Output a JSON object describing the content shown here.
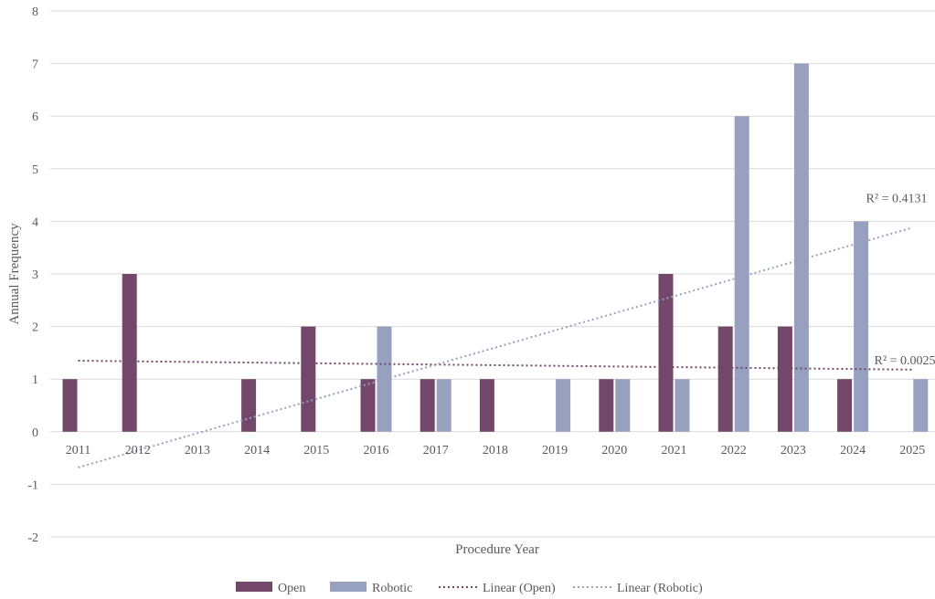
{
  "chart_data": {
    "type": "bar",
    "xlabel": "Procedure Year",
    "ylabel": "Annual Frequency",
    "ylim": [
      -2,
      8
    ],
    "yticks": [
      -2,
      -1,
      0,
      1,
      2,
      3,
      4,
      5,
      6,
      7,
      8
    ],
    "categories": [
      "2011",
      "2012",
      "2013",
      "2014",
      "2015",
      "2016",
      "2017",
      "2018",
      "2019",
      "2020",
      "2021",
      "2022",
      "2023",
      "2024",
      "2025"
    ],
    "grid": true,
    "legend_position": "bottom",
    "series": [
      {
        "name": "Open",
        "color": "#72476a",
        "values": [
          1,
          3,
          0,
          1,
          2,
          1,
          1,
          1,
          0,
          1,
          3,
          2,
          2,
          1,
          0
        ]
      },
      {
        "name": "Robotic",
        "color": "#97a1bf",
        "values": [
          0,
          0,
          0,
          0,
          0,
          2,
          1,
          0,
          1,
          1,
          1,
          6,
          7,
          4,
          1
        ]
      }
    ],
    "trendlines": [
      {
        "name": "Linear (Open)",
        "color": "#72476a",
        "type": "linear",
        "start": [
          2011,
          1.35
        ],
        "end": [
          2025,
          1.18
        ],
        "r2_label": "R² = 0.0025"
      },
      {
        "name": "Linear (Robotic)",
        "color": "#97a1bf",
        "type": "linear",
        "start": [
          2011,
          -0.68
        ],
        "end": [
          2025,
          3.88
        ],
        "r2_label": "R² = 0.4131"
      }
    ]
  }
}
